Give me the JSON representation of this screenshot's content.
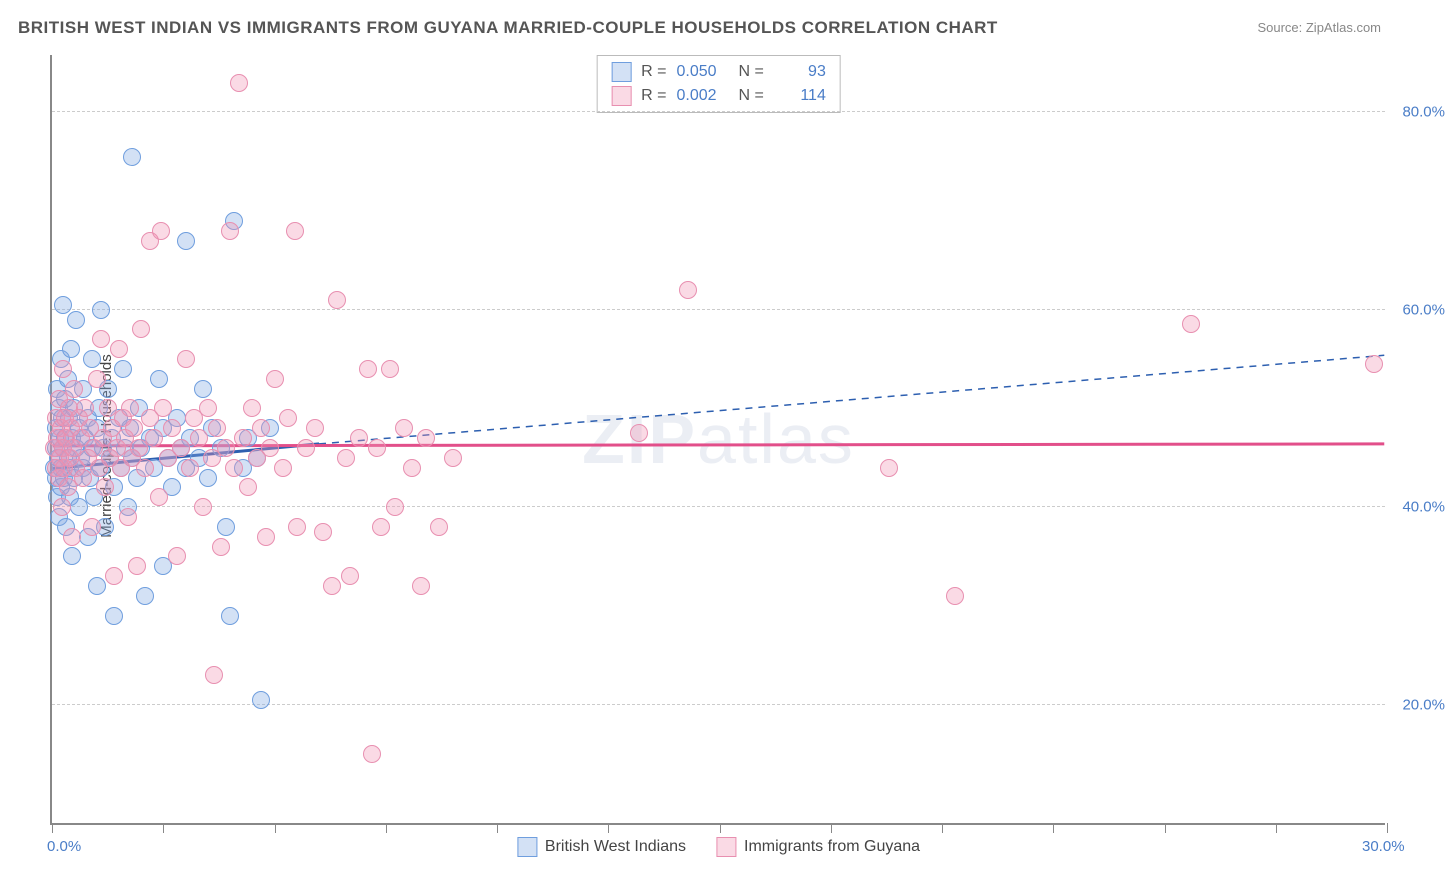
{
  "title": "BRITISH WEST INDIAN VS IMMIGRANTS FROM GUYANA MARRIED-COUPLE HOUSEHOLDS CORRELATION CHART",
  "source": "Source: ZipAtlas.com",
  "ylabel": "Married-couple Households",
  "watermark_a": "ZIP",
  "watermark_b": "atlas",
  "chart": {
    "type": "scatter",
    "xlim": [
      0,
      30
    ],
    "ylim": [
      8,
      86
    ],
    "xtick_positions": [
      0,
      2.5,
      5,
      7.5,
      10,
      12.5,
      15,
      17.5,
      20,
      22.5,
      25,
      27.5,
      30
    ],
    "xtick_labels": {
      "0": "0.0%",
      "30": "30.0%"
    },
    "ytick_positions": [
      20,
      40,
      60,
      80
    ],
    "ytick_labels": [
      "20.0%",
      "40.0%",
      "60.0%",
      "80.0%"
    ],
    "grid_color": "#cccccc",
    "axis_color": "#888888",
    "background_color": "#ffffff",
    "marker_radius": 9,
    "marker_border_width": 1.5,
    "series": [
      {
        "name": "British West Indians",
        "fill_color": "rgba(128,170,225,0.35)",
        "stroke_color": "#6f9ede",
        "r_label": "R =",
        "r_value": "0.050",
        "n_label": "N =",
        "n_value": "93",
        "trend": {
          "color": "#2d5fb0",
          "solid_width": 3,
          "dash": "7,6",
          "y_at_xmin": 44.0,
          "y_at_solid_end": 46.5,
          "solid_end_x": 6.0,
          "y_at_xmax": 55.5
        },
        "points": [
          [
            0.05,
            44
          ],
          [
            0.08,
            46
          ],
          [
            0.1,
            43
          ],
          [
            0.1,
            48
          ],
          [
            0.12,
            41
          ],
          [
            0.12,
            52
          ],
          [
            0.14,
            45
          ],
          [
            0.15,
            39
          ],
          [
            0.15,
            50
          ],
          [
            0.18,
            47
          ],
          [
            0.2,
            44
          ],
          [
            0.2,
            42
          ],
          [
            0.2,
            55
          ],
          [
            0.22,
            49
          ],
          [
            0.25,
            46
          ],
          [
            0.25,
            60.5
          ],
          [
            0.28,
            43
          ],
          [
            0.3,
            47
          ],
          [
            0.3,
            51
          ],
          [
            0.32,
            38
          ],
          [
            0.35,
            45
          ],
          [
            0.35,
            53
          ],
          [
            0.38,
            49
          ],
          [
            0.4,
            44
          ],
          [
            0.4,
            41
          ],
          [
            0.42,
            56
          ],
          [
            0.45,
            47
          ],
          [
            0.45,
            35
          ],
          [
            0.5,
            50
          ],
          [
            0.5,
            43
          ],
          [
            0.55,
            46
          ],
          [
            0.55,
            59
          ],
          [
            0.6,
            48
          ],
          [
            0.6,
            40
          ],
          [
            0.65,
            45
          ],
          [
            0.7,
            52
          ],
          [
            0.7,
            44
          ],
          [
            0.75,
            47
          ],
          [
            0.8,
            37
          ],
          [
            0.8,
            49
          ],
          [
            0.85,
            43
          ],
          [
            0.9,
            55
          ],
          [
            0.9,
            46
          ],
          [
            0.95,
            41
          ],
          [
            1.0,
            48
          ],
          [
            1.0,
            32
          ],
          [
            1.05,
            50
          ],
          [
            1.1,
            44
          ],
          [
            1.1,
            60
          ],
          [
            1.15,
            46
          ],
          [
            1.2,
            38
          ],
          [
            1.25,
            52
          ],
          [
            1.3,
            45
          ],
          [
            1.35,
            47
          ],
          [
            1.4,
            29
          ],
          [
            1.4,
            42
          ],
          [
            1.5,
            49
          ],
          [
            1.55,
            44
          ],
          [
            1.6,
            54
          ],
          [
            1.65,
            46
          ],
          [
            1.7,
            40
          ],
          [
            1.75,
            48
          ],
          [
            1.8,
            45
          ],
          [
            1.8,
            75.5
          ],
          [
            1.9,
            43
          ],
          [
            1.95,
            50
          ],
          [
            2.0,
            46
          ],
          [
            2.1,
            31
          ],
          [
            2.2,
            47
          ],
          [
            2.3,
            44
          ],
          [
            2.4,
            53
          ],
          [
            2.5,
            34
          ],
          [
            2.5,
            48
          ],
          [
            2.6,
            45
          ],
          [
            2.7,
            42
          ],
          [
            2.8,
            49
          ],
          [
            2.9,
            46
          ],
          [
            3.0,
            44
          ],
          [
            3.0,
            67
          ],
          [
            3.1,
            47
          ],
          [
            3.3,
            45
          ],
          [
            3.4,
            52
          ],
          [
            3.5,
            43
          ],
          [
            3.6,
            48
          ],
          [
            3.8,
            46
          ],
          [
            3.9,
            38
          ],
          [
            4.0,
            29
          ],
          [
            4.1,
            69
          ],
          [
            4.3,
            44
          ],
          [
            4.4,
            47
          ],
          [
            4.6,
            45
          ],
          [
            4.7,
            20.5
          ],
          [
            4.9,
            48
          ]
        ]
      },
      {
        "name": "Immigrants from Guyana",
        "fill_color": "rgba(240,150,180,0.35)",
        "stroke_color": "#e88fb0",
        "r_label": "R =",
        "r_value": "0.002",
        "n_label": "N =",
        "n_value": "114",
        "trend": {
          "color": "#e24f8a",
          "solid_width": 3,
          "dash": "none",
          "y_at_xmin": 46.3,
          "y_at_xmax": 46.5
        },
        "points": [
          [
            0.05,
            46
          ],
          [
            0.08,
            44
          ],
          [
            0.1,
            49
          ],
          [
            0.12,
            47
          ],
          [
            0.15,
            43
          ],
          [
            0.15,
            51
          ],
          [
            0.18,
            45
          ],
          [
            0.2,
            48
          ],
          [
            0.22,
            40
          ],
          [
            0.25,
            46
          ],
          [
            0.25,
            54
          ],
          [
            0.28,
            44
          ],
          [
            0.3,
            49
          ],
          [
            0.32,
            47
          ],
          [
            0.35,
            42
          ],
          [
            0.38,
            50
          ],
          [
            0.4,
            45
          ],
          [
            0.42,
            48
          ],
          [
            0.45,
            37
          ],
          [
            0.48,
            46
          ],
          [
            0.5,
            52
          ],
          [
            0.55,
            44
          ],
          [
            0.6,
            49
          ],
          [
            0.65,
            47
          ],
          [
            0.7,
            43
          ],
          [
            0.75,
            50
          ],
          [
            0.8,
            45
          ],
          [
            0.85,
            48
          ],
          [
            0.9,
            38
          ],
          [
            0.95,
            46
          ],
          [
            1.0,
            53
          ],
          [
            1.05,
            44
          ],
          [
            1.1,
            57
          ],
          [
            1.15,
            47
          ],
          [
            1.2,
            42
          ],
          [
            1.25,
            50
          ],
          [
            1.3,
            45
          ],
          [
            1.35,
            48
          ],
          [
            1.4,
            33
          ],
          [
            1.45,
            46
          ],
          [
            1.5,
            56
          ],
          [
            1.55,
            44
          ],
          [
            1.6,
            49
          ],
          [
            1.65,
            47
          ],
          [
            1.7,
            39
          ],
          [
            1.75,
            50
          ],
          [
            1.8,
            45
          ],
          [
            1.85,
            48
          ],
          [
            1.9,
            34
          ],
          [
            1.95,
            46
          ],
          [
            2.0,
            58
          ],
          [
            2.1,
            44
          ],
          [
            2.2,
            49
          ],
          [
            2.2,
            67
          ],
          [
            2.3,
            47
          ],
          [
            2.4,
            41
          ],
          [
            2.45,
            68
          ],
          [
            2.5,
            50
          ],
          [
            2.6,
            45
          ],
          [
            2.7,
            48
          ],
          [
            2.8,
            35
          ],
          [
            2.9,
            46
          ],
          [
            3.0,
            55
          ],
          [
            3.1,
            44
          ],
          [
            3.2,
            49
          ],
          [
            3.3,
            47
          ],
          [
            3.4,
            40
          ],
          [
            3.5,
            50
          ],
          [
            3.6,
            45
          ],
          [
            3.65,
            23
          ],
          [
            3.7,
            48
          ],
          [
            3.8,
            36
          ],
          [
            3.9,
            46
          ],
          [
            4.0,
            68
          ],
          [
            4.1,
            44
          ],
          [
            4.2,
            83
          ],
          [
            4.3,
            47
          ],
          [
            4.4,
            42
          ],
          [
            4.5,
            50
          ],
          [
            4.6,
            45
          ],
          [
            4.7,
            48
          ],
          [
            4.8,
            37
          ],
          [
            4.9,
            46
          ],
          [
            5.0,
            53
          ],
          [
            5.2,
            44
          ],
          [
            5.3,
            49
          ],
          [
            5.45,
            68
          ],
          [
            5.5,
            38
          ],
          [
            5.7,
            46
          ],
          [
            5.9,
            48
          ],
          [
            6.1,
            37.5
          ],
          [
            6.3,
            32
          ],
          [
            6.4,
            61
          ],
          [
            6.6,
            45
          ],
          [
            6.7,
            33
          ],
          [
            6.9,
            47
          ],
          [
            7.1,
            54
          ],
          [
            7.2,
            15
          ],
          [
            7.3,
            46
          ],
          [
            7.4,
            38
          ],
          [
            7.6,
            54
          ],
          [
            7.7,
            40
          ],
          [
            7.9,
            48
          ],
          [
            8.1,
            44
          ],
          [
            8.3,
            32
          ],
          [
            8.4,
            47
          ],
          [
            8.7,
            38
          ],
          [
            9.0,
            45
          ],
          [
            13.2,
            47.5
          ],
          [
            14.3,
            62
          ],
          [
            18.8,
            44
          ],
          [
            20.3,
            31
          ],
          [
            25.6,
            58.5
          ],
          [
            29.7,
            54.5
          ]
        ]
      }
    ]
  },
  "legend_bottom": [
    {
      "label": "British West Indians",
      "series_index": 0
    },
    {
      "label": "Immigrants from Guyana",
      "series_index": 1
    }
  ]
}
